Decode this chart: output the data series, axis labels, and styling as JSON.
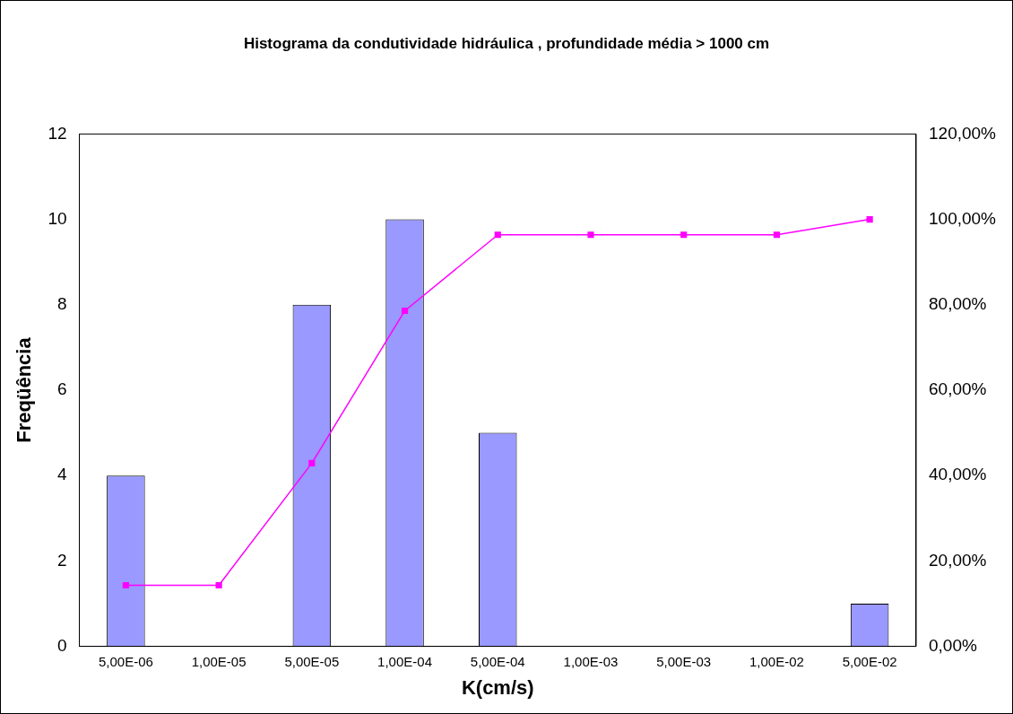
{
  "chart_data": {
    "type": "bar",
    "title": "Histograma da condutividade hidráulica , profundidade média > 1000 cm",
    "xlabel": "K(cm/s)",
    "ylabel": "Freqüência",
    "categories": [
      "5,00E-06",
      "1,00E-05",
      "5,00E-05",
      "1,00E-04",
      "5,00E-04",
      "1,00E-03",
      "5,00E-03",
      "1,00E-02",
      "5,00E-02"
    ],
    "series": [
      {
        "color": "#9999ff",
        "values": [
          4,
          0,
          8,
          10,
          5,
          0,
          0,
          0,
          1
        ]
      },
      {
        "type": "line",
        "axis": "y2",
        "color": "#ff00ff",
        "values": [
          14.3,
          14.3,
          42.9,
          78.6,
          96.4,
          96.4,
          96.4,
          96.4,
          100
        ]
      }
    ],
    "marker": "square",
    "grid": false,
    "legend": false,
    "ylim": [
      0,
      12
    ],
    "yticks": [
      0,
      2,
      4,
      6,
      8,
      10,
      12
    ],
    "y2lim": [
      0,
      120
    ],
    "y2ticks": [
      {
        "value": 0,
        "label": "0,00%"
      },
      {
        "value": 20,
        "label": "20,00%"
      },
      {
        "value": 40,
        "label": "40,00%"
      },
      {
        "value": 60,
        "label": "60,00%"
      },
      {
        "value": 80,
        "label": "80,00%"
      },
      {
        "value": 100,
        "label": "100,00%"
      },
      {
        "value": 120,
        "label": "120,00%"
      }
    ]
  }
}
